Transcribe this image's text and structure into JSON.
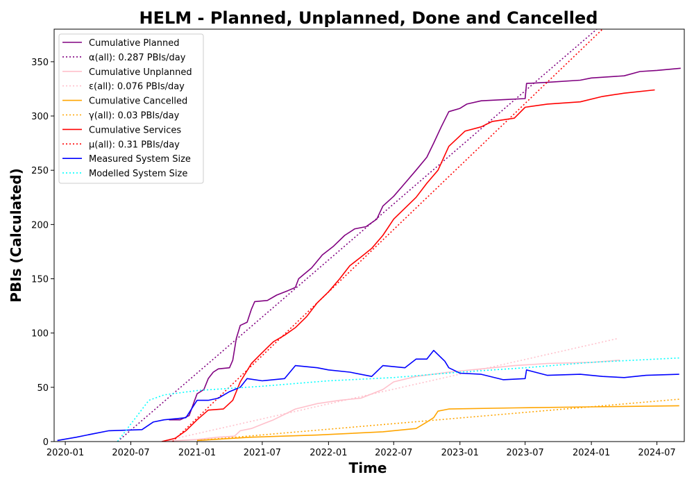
{
  "chart_data": {
    "type": "line",
    "title": "HELM - Planned, Unplanned, Done  and Cancelled",
    "xlabel": "Time",
    "ylabel": "PBIs (Calculated)",
    "xlim": [
      "2019-12-01",
      "2024-09-15"
    ],
    "ylim": [
      0,
      380
    ],
    "x_ticks": [
      "2020-01",
      "2020-07",
      "2021-01",
      "2021-07",
      "2022-01",
      "2022-07",
      "2023-01",
      "2023-07",
      "2024-01",
      "2024-07"
    ],
    "y_ticks": [
      0,
      50,
      100,
      150,
      200,
      250,
      300,
      350
    ],
    "grid": false,
    "legend_position": "top-left",
    "series": [
      {
        "name": "Cumulative Planned",
        "color": "#800080",
        "style": "solid",
        "points": [
          [
            "2020-10-15",
            20
          ],
          [
            "2020-11-15",
            20
          ],
          [
            "2020-12-10",
            24
          ],
          [
            "2020-12-22",
            35
          ],
          [
            "2021-01-01",
            44
          ],
          [
            "2021-01-20",
            48
          ],
          [
            "2021-02-01",
            58
          ],
          [
            "2021-02-15",
            64
          ],
          [
            "2021-03-01",
            67
          ],
          [
            "2021-04-01",
            68
          ],
          [
            "2021-04-10",
            75
          ],
          [
            "2021-04-20",
            95
          ],
          [
            "2021-05-01",
            107
          ],
          [
            "2021-05-20",
            110
          ],
          [
            "2021-06-01",
            122
          ],
          [
            "2021-06-10",
            129
          ],
          [
            "2021-07-15",
            130
          ],
          [
            "2021-08-10",
            135
          ],
          [
            "2021-09-10",
            139
          ],
          [
            "2021-10-01",
            142
          ],
          [
            "2021-10-10",
            150
          ],
          [
            "2021-11-15",
            160
          ],
          [
            "2021-12-15",
            172
          ],
          [
            "2022-01-15",
            180
          ],
          [
            "2022-02-15",
            190
          ],
          [
            "2022-03-15",
            196
          ],
          [
            "2022-04-15",
            198
          ],
          [
            "2022-05-15",
            205
          ],
          [
            "2022-06-01",
            217
          ],
          [
            "2022-07-01",
            226
          ],
          [
            "2022-08-01",
            238
          ],
          [
            "2022-09-01",
            250
          ],
          [
            "2022-10-01",
            262
          ],
          [
            "2022-10-20",
            275
          ],
          [
            "2022-11-10",
            290
          ],
          [
            "2022-12-01",
            304
          ],
          [
            "2023-01-01",
            307
          ],
          [
            "2023-01-20",
            311
          ],
          [
            "2023-03-01",
            314
          ],
          [
            "2023-05-01",
            315
          ],
          [
            "2023-07-01",
            316
          ],
          [
            "2023-07-05",
            330
          ],
          [
            "2023-09-01",
            331
          ],
          [
            "2023-12-01",
            333
          ],
          [
            "2024-01-01",
            335
          ],
          [
            "2024-04-01",
            337
          ],
          [
            "2024-05-15",
            341
          ],
          [
            "2024-07-01",
            342
          ],
          [
            "2024-09-05",
            344
          ]
        ]
      },
      {
        "name": "α(all): 0.287 PBIs/day",
        "color": "#800080",
        "style": "dotted",
        "points": [
          [
            "2020-05-25",
            0
          ],
          [
            "2024-01-16",
            380
          ]
        ]
      },
      {
        "name": "Cumulative Unplanned",
        "color": "#ffc0cb",
        "style": "solid",
        "points": [
          [
            "2020-09-25",
            0
          ],
          [
            "2021-01-01",
            2
          ],
          [
            "2021-03-01",
            4
          ],
          [
            "2021-04-15",
            5
          ],
          [
            "2021-05-01",
            10
          ],
          [
            "2021-06-01",
            12
          ],
          [
            "2021-07-01",
            16
          ],
          [
            "2021-08-01",
            20
          ],
          [
            "2021-10-01",
            30
          ],
          [
            "2021-12-01",
            35
          ],
          [
            "2022-02-01",
            38
          ],
          [
            "2022-04-01",
            40
          ],
          [
            "2022-06-01",
            48
          ],
          [
            "2022-07-01",
            55
          ],
          [
            "2022-09-01",
            60
          ],
          [
            "2022-12-01",
            64
          ],
          [
            "2023-03-01",
            67
          ],
          [
            "2023-06-01",
            70
          ],
          [
            "2023-09-01",
            72
          ],
          [
            "2024-01-01",
            73
          ],
          [
            "2024-03-20",
            75
          ]
        ]
      },
      {
        "name": "ε(all): 0.076 PBIs/day",
        "color": "#ffc0cb",
        "style": "dotted",
        "points": [
          [
            "2020-09-25",
            0
          ],
          [
            "2024-03-15",
            95
          ]
        ]
      },
      {
        "name": "Cumulative Cancelled",
        "color": "#ffa500",
        "style": "solid",
        "points": [
          [
            "2021-01-01",
            1
          ],
          [
            "2021-06-01",
            4
          ],
          [
            "2021-12-01",
            6
          ],
          [
            "2022-06-01",
            9
          ],
          [
            "2022-09-01",
            12
          ],
          [
            "2022-10-01",
            18
          ],
          [
            "2022-10-20",
            22
          ],
          [
            "2022-11-01",
            28
          ],
          [
            "2022-12-01",
            30
          ],
          [
            "2023-06-01",
            31
          ],
          [
            "2024-01-01",
            32
          ],
          [
            "2024-09-01",
            33
          ]
        ]
      },
      {
        "name": "γ(all): 0.03 PBIs/day",
        "color": "#ffa500",
        "style": "dotted",
        "points": [
          [
            "2021-01-01",
            1
          ],
          [
            "2024-09-01",
            39
          ]
        ]
      },
      {
        "name": "Cumulative Services",
        "color": "#ff0000",
        "style": "solid",
        "points": [
          [
            "2020-09-25",
            0
          ],
          [
            "2020-11-01",
            3
          ],
          [
            "2020-12-01",
            10
          ],
          [
            "2021-01-01",
            20
          ],
          [
            "2021-02-01",
            29
          ],
          [
            "2021-03-15",
            30
          ],
          [
            "2021-04-10",
            38
          ],
          [
            "2021-05-01",
            55
          ],
          [
            "2021-06-01",
            72
          ],
          [
            "2021-07-01",
            82
          ],
          [
            "2021-08-01",
            92
          ],
          [
            "2021-09-01",
            98
          ],
          [
            "2021-10-01",
            105
          ],
          [
            "2021-11-01",
            115
          ],
          [
            "2021-12-01",
            128
          ],
          [
            "2022-01-01",
            138
          ],
          [
            "2022-02-01",
            150
          ],
          [
            "2022-03-01",
            162
          ],
          [
            "2022-04-01",
            170
          ],
          [
            "2022-05-01",
            178
          ],
          [
            "2022-06-01",
            190
          ],
          [
            "2022-07-01",
            205
          ],
          [
            "2022-08-01",
            215
          ],
          [
            "2022-09-01",
            225
          ],
          [
            "2022-10-01",
            238
          ],
          [
            "2022-11-01",
            250
          ],
          [
            "2022-12-01",
            272
          ],
          [
            "2023-01-15",
            286
          ],
          [
            "2023-03-01",
            290
          ],
          [
            "2023-04-01",
            295
          ],
          [
            "2023-06-01",
            298
          ],
          [
            "2023-07-01",
            308
          ],
          [
            "2023-09-01",
            311
          ],
          [
            "2023-12-01",
            313
          ],
          [
            "2024-02-01",
            318
          ],
          [
            "2024-04-01",
            321
          ],
          [
            "2024-06-25",
            324
          ]
        ]
      },
      {
        "name": "μ(all): 0.31 PBIs/day",
        "color": "#ff0000",
        "style": "dotted",
        "points": [
          [
            "2020-10-25",
            0
          ],
          [
            "2024-02-01",
            380
          ]
        ]
      },
      {
        "name": "Measured System Size",
        "color": "#0000ff",
        "style": "solid",
        "points": [
          [
            "2019-12-10",
            1
          ],
          [
            "2020-02-01",
            4
          ],
          [
            "2020-03-01",
            6
          ],
          [
            "2020-05-01",
            10
          ],
          [
            "2020-08-01",
            11
          ],
          [
            "2020-09-01",
            18
          ],
          [
            "2020-10-01",
            20
          ],
          [
            "2020-11-01",
            21
          ],
          [
            "2020-12-01",
            22
          ],
          [
            "2021-01-01",
            38
          ],
          [
            "2021-02-01",
            38
          ],
          [
            "2021-03-01",
            40
          ],
          [
            "2021-04-01",
            46
          ],
          [
            "2021-05-01",
            50
          ],
          [
            "2021-05-20",
            58
          ],
          [
            "2021-07-01",
            56
          ],
          [
            "2021-09-01",
            58
          ],
          [
            "2021-10-01",
            70
          ],
          [
            "2021-12-01",
            68
          ],
          [
            "2022-01-01",
            66
          ],
          [
            "2022-03-01",
            64
          ],
          [
            "2022-05-01",
            60
          ],
          [
            "2022-06-01",
            70
          ],
          [
            "2022-08-01",
            68
          ],
          [
            "2022-09-01",
            76
          ],
          [
            "2022-10-01",
            76
          ],
          [
            "2022-10-20",
            84
          ],
          [
            "2022-11-20",
            74
          ],
          [
            "2022-12-01",
            68
          ],
          [
            "2023-01-01",
            63
          ],
          [
            "2023-03-01",
            62
          ],
          [
            "2023-05-01",
            57
          ],
          [
            "2023-07-01",
            58
          ],
          [
            "2023-07-05",
            66
          ],
          [
            "2023-09-01",
            61
          ],
          [
            "2023-12-01",
            62
          ],
          [
            "2024-02-01",
            60
          ],
          [
            "2024-04-01",
            59
          ],
          [
            "2024-06-01",
            61
          ],
          [
            "2024-09-01",
            62
          ]
        ]
      },
      {
        "name": "Modelled System Size",
        "color": "#00ffff",
        "style": "dotted",
        "points": [
          [
            "2020-05-25",
            0
          ],
          [
            "2020-08-20",
            38
          ],
          [
            "2020-10-01",
            43
          ],
          [
            "2021-01-01",
            47
          ],
          [
            "2021-07-01",
            51
          ],
          [
            "2022-01-01",
            56
          ],
          [
            "2022-07-01",
            59
          ],
          [
            "2023-01-01",
            64
          ],
          [
            "2023-07-01",
            68
          ],
          [
            "2024-01-01",
            73
          ],
          [
            "2024-09-01",
            77
          ]
        ]
      }
    ]
  }
}
